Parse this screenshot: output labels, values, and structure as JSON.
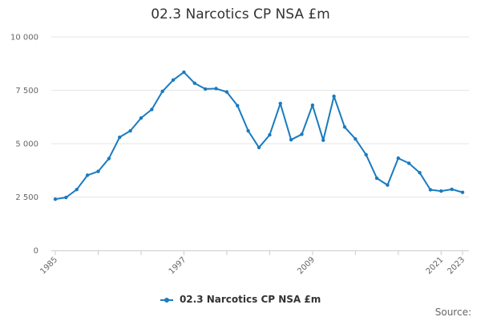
{
  "chart_data": {
    "type": "line",
    "title": "02.3 Narcotics CP NSA £m",
    "xlabel": "",
    "ylabel": "",
    "ylim": [
      0,
      10000
    ],
    "y_ticks": [
      0,
      2500,
      5000,
      7500,
      10000
    ],
    "y_tick_labels": [
      "0",
      "2 500",
      "5 000",
      "7 500",
      "10 000"
    ],
    "x_ticks": [
      1985,
      1997,
      2009,
      2021,
      2023
    ],
    "x_tick_labels": [
      "1985",
      "1997",
      "2009",
      "2021",
      "2023"
    ],
    "grid": "horizontal",
    "legend_position": "bottom",
    "x": [
      1985,
      1986,
      1987,
      1988,
      1989,
      1990,
      1991,
      1992,
      1993,
      1994,
      1995,
      1996,
      1997,
      1998,
      1999,
      2000,
      2001,
      2002,
      2003,
      2004,
      2005,
      2006,
      2007,
      2008,
      2009,
      2010,
      2011,
      2012,
      2013,
      2014,
      2015,
      2016,
      2017,
      2018,
      2019,
      2020,
      2021,
      2022,
      2023
    ],
    "series": [
      {
        "name": "02.3 Narcotics CP NSA £m",
        "color": "#1a7bbf",
        "values": [
          2400,
          2480,
          2850,
          3520,
          3700,
          4300,
          5300,
          5600,
          6200,
          6600,
          7450,
          7980,
          8350,
          7830,
          7560,
          7580,
          7420,
          6780,
          5600,
          4820,
          5410,
          6880,
          5180,
          5440,
          6800,
          5160,
          7220,
          5780,
          5220,
          4480,
          3380,
          3060,
          4320,
          4080,
          3640,
          2840,
          2780,
          2860,
          2720
        ]
      }
    ]
  },
  "legend": {
    "label": "02.3 Narcotics CP NSA £m"
  },
  "footer": {
    "source_label": "Source:"
  }
}
